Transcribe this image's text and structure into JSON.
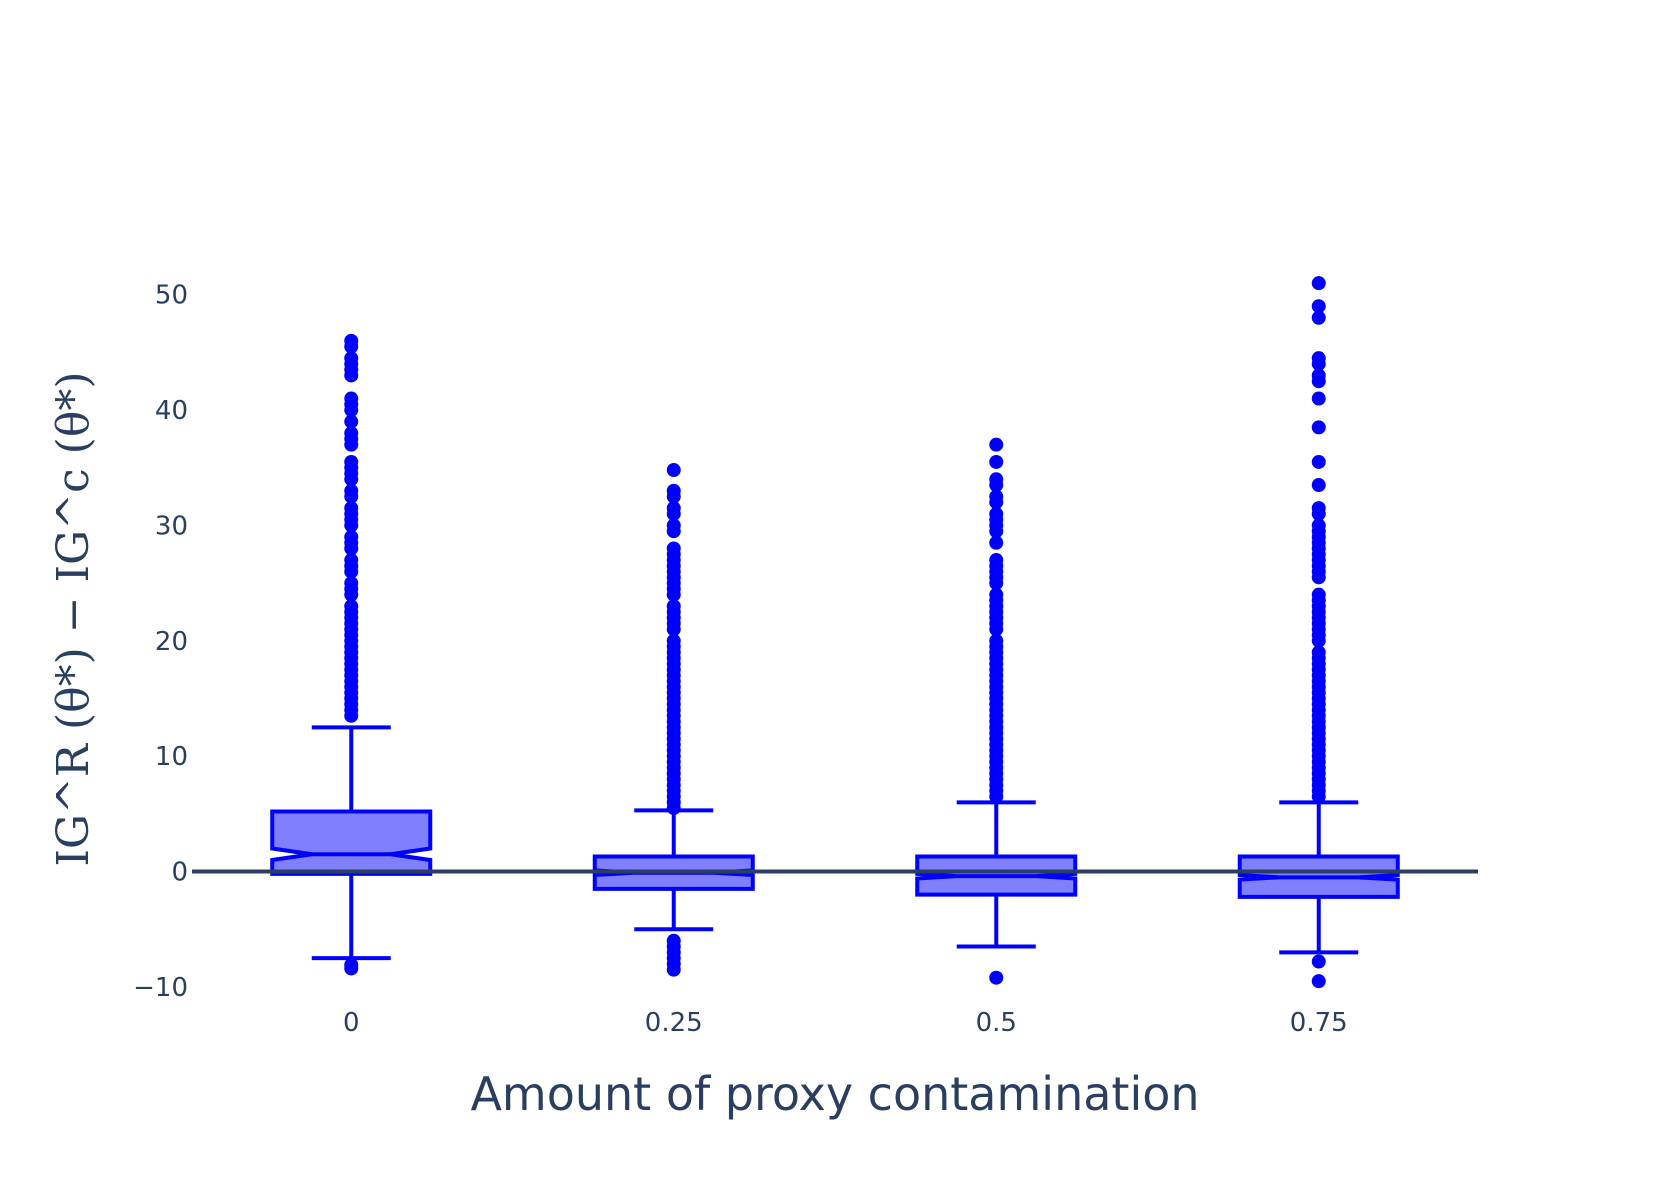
{
  "colors": {
    "box": "#0000ff",
    "box_fill": "#8080ff",
    "text": "#2a3f5f",
    "zero_line": "#2a3f5f"
  },
  "chart_data": {
    "type": "box",
    "xlabel": "Amount of proxy contamination",
    "ylabel": "IG^R (θ*) − IG^c (θ*)",
    "ylim": [
      -12,
      55
    ],
    "yticks": [
      -10,
      0,
      10,
      20,
      30,
      40,
      50
    ],
    "ytick_labels": [
      "−10",
      "0",
      "10",
      "20",
      "30",
      "40",
      "50"
    ],
    "grid": false,
    "categories": [
      "0",
      "0.25",
      "0.5",
      "0.75"
    ],
    "boxes": [
      {
        "category": "0",
        "lower_whisker": -7.5,
        "q1": -0.2,
        "median": 1.5,
        "q3": 5.2,
        "upper_whisker": 12.5,
        "notch_low": 1.0,
        "notch_high": 2.0,
        "outliers": [
          -8.4,
          -8.1,
          13.5,
          14.0,
          14.5,
          15.0,
          15.5,
          16.0,
          16.5,
          17.0,
          17.5,
          18.0,
          18.5,
          19.0,
          19.5,
          20.0,
          20.5,
          21.0,
          21.5,
          22.0,
          22.5,
          23.0,
          24.0,
          24.5,
          25.0,
          26.0,
          26.5,
          27.0,
          28.0,
          28.5,
          29.0,
          30.0,
          30.5,
          31.0,
          31.5,
          32.5,
          33.0,
          34.0,
          34.5,
          35.0,
          35.5,
          37.0,
          37.5,
          38.0,
          39.0,
          40.0,
          40.5,
          41.0,
          43.0,
          43.5,
          44.0,
          44.5,
          45.5,
          46.0
        ]
      },
      {
        "category": "0.25",
        "lower_whisker": -5.0,
        "q1": -1.5,
        "median": -0.1,
        "q3": 1.3,
        "upper_whisker": 5.3,
        "notch_low": -0.3,
        "notch_high": 0.1,
        "outliers": [
          -8.5,
          -8.0,
          -7.5,
          -7.0,
          -6.5,
          -6.0,
          5.5,
          6.0,
          6.5,
          7.0,
          7.5,
          8.0,
          8.5,
          9.0,
          9.5,
          10.0,
          10.5,
          11.0,
          11.5,
          12.0,
          12.5,
          13.0,
          13.5,
          14.0,
          14.5,
          15.0,
          15.5,
          16.0,
          16.5,
          17.0,
          17.5,
          18.0,
          18.5,
          19.0,
          19.5,
          20.0,
          21.0,
          21.5,
          22.0,
          22.5,
          23.0,
          24.0,
          24.5,
          25.0,
          25.5,
          26.0,
          26.5,
          27.0,
          27.5,
          28.0,
          29.5,
          30.0,
          31.0,
          31.5,
          32.5,
          33.0,
          34.8
        ]
      },
      {
        "category": "0.5",
        "lower_whisker": -6.5,
        "q1": -2.0,
        "median": -0.4,
        "q3": 1.3,
        "upper_whisker": 6.0,
        "notch_low": -0.6,
        "notch_high": -0.2,
        "outliers": [
          -9.2,
          6.5,
          7.0,
          7.5,
          8.0,
          8.5,
          9.0,
          9.5,
          10.0,
          10.5,
          11.0,
          11.5,
          12.0,
          12.5,
          13.0,
          13.5,
          14.0,
          14.5,
          15.0,
          15.5,
          16.0,
          16.5,
          17.0,
          17.5,
          18.0,
          18.5,
          19.0,
          19.5,
          20.0,
          21.0,
          21.5,
          22.0,
          22.5,
          23.0,
          23.5,
          24.0,
          25.0,
          25.5,
          26.0,
          26.5,
          27.0,
          28.5,
          29.5,
          30.0,
          30.5,
          31.0,
          32.0,
          32.5,
          33.5,
          34.0,
          35.5,
          37.0
        ]
      },
      {
        "category": "0.75",
        "lower_whisker": -7.0,
        "q1": -2.2,
        "median": -0.5,
        "q3": 1.3,
        "upper_whisker": 6.0,
        "notch_low": -0.7,
        "notch_high": -0.3,
        "outliers": [
          -9.5,
          -7.8,
          6.5,
          7.0,
          7.5,
          8.0,
          8.5,
          9.0,
          9.5,
          10.0,
          10.5,
          11.0,
          11.5,
          12.0,
          12.5,
          13.0,
          13.5,
          14.0,
          14.5,
          15.0,
          15.5,
          16.0,
          16.5,
          17.0,
          17.5,
          18.0,
          18.5,
          19.0,
          20.0,
          20.5,
          21.0,
          21.5,
          22.0,
          22.5,
          23.0,
          23.5,
          24.0,
          25.5,
          26.0,
          26.5,
          27.0,
          27.5,
          28.0,
          28.5,
          29.0,
          29.5,
          30.0,
          31.0,
          31.5,
          33.5,
          35.5,
          38.5,
          41.0,
          42.5,
          43.0,
          44.0,
          44.5,
          48.0,
          49.0,
          51.0
        ]
      }
    ]
  }
}
